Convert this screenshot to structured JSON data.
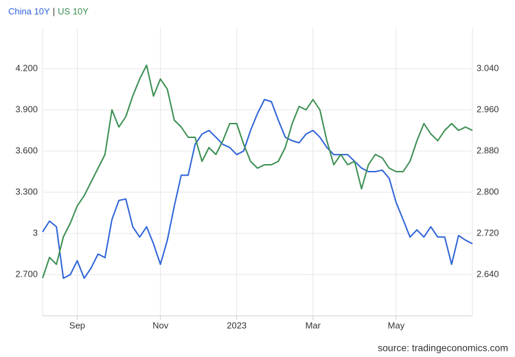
{
  "chart_data": {
    "type": "line",
    "legend_separator": "|",
    "source": "source: tradingeconomics.com",
    "categories": [
      null,
      null,
      null,
      null,
      null,
      "Sep",
      null,
      null,
      null,
      null,
      null,
      null,
      null,
      null,
      null,
      null,
      null,
      "Nov",
      null,
      null,
      null,
      null,
      null,
      null,
      null,
      null,
      null,
      null,
      "2023",
      null,
      null,
      null,
      null,
      null,
      null,
      null,
      null,
      null,
      null,
      "Mar",
      null,
      null,
      null,
      null,
      null,
      null,
      null,
      null,
      null,
      null,
      null,
      "May",
      null,
      null,
      null,
      null,
      null,
      null,
      null,
      null,
      null,
      null,
      null
    ],
    "series": [
      {
        "name": "China 10Y",
        "color": "#2f64d8",
        "axis": "y2",
        "values": [
          2.723,
          2.744,
          2.733,
          2.633,
          2.64,
          2.667,
          2.633,
          2.653,
          2.68,
          2.673,
          2.747,
          2.784,
          2.787,
          2.733,
          2.713,
          2.733,
          2.7,
          2.66,
          2.707,
          2.773,
          2.833,
          2.833,
          2.893,
          2.913,
          2.92,
          2.907,
          2.893,
          2.887,
          2.873,
          2.88,
          2.92,
          2.953,
          2.98,
          2.976,
          2.94,
          2.907,
          2.9,
          2.896,
          2.913,
          2.92,
          2.907,
          2.887,
          2.873,
          2.873,
          2.873,
          2.86,
          2.847,
          2.84,
          2.84,
          2.843,
          2.827,
          2.78,
          2.747,
          2.713,
          2.727,
          2.713,
          2.733,
          2.713,
          2.713,
          2.66,
          2.716,
          2.707,
          2.7
        ]
      },
      {
        "name": "US 10Y",
        "color": "#3b8f52",
        "axis": "y",
        "values": [
          2.675,
          2.825,
          2.775,
          2.975,
          3.075,
          3.2,
          3.275,
          3.375,
          3.475,
          3.575,
          3.9,
          3.775,
          3.85,
          4.0,
          4.125,
          4.225,
          4.0,
          4.125,
          4.05,
          3.825,
          3.775,
          3.7,
          3.7,
          3.525,
          3.625,
          3.575,
          3.675,
          3.8,
          3.8,
          3.65,
          3.525,
          3.475,
          3.5,
          3.5,
          3.525,
          3.625,
          3.8,
          3.925,
          3.9,
          3.975,
          3.9,
          3.675,
          3.5,
          3.575,
          3.5,
          3.525,
          3.325,
          3.5,
          3.575,
          3.55,
          3.475,
          3.45,
          3.45,
          3.525,
          3.675,
          3.8,
          3.725,
          3.675,
          3.75,
          3.8,
          3.75,
          3.775,
          3.75
        ]
      }
    ],
    "ylim": [
      2.4,
      4.5
    ],
    "yticks": [
      {
        "value": 2.7,
        "label": "2.700"
      },
      3,
      {
        "value": 3.3,
        "label": "3.300"
      },
      {
        "value": 3.6,
        "label": "3.600"
      },
      {
        "value": 3.9,
        "label": "3.900"
      },
      {
        "value": 4.2,
        "label": "4.200"
      }
    ],
    "y2lim": [
      2.56,
      3.12
    ],
    "y2ticks": [
      {
        "value": 2.64,
        "label": "2.640"
      },
      {
        "value": 2.72,
        "label": "2.720"
      },
      {
        "value": 2.8,
        "label": "2.800"
      },
      {
        "value": 2.88,
        "label": "2.880"
      },
      {
        "value": 2.96,
        "label": "2.960"
      },
      {
        "value": 3.04,
        "label": "3.040"
      }
    ],
    "grid": true
  }
}
